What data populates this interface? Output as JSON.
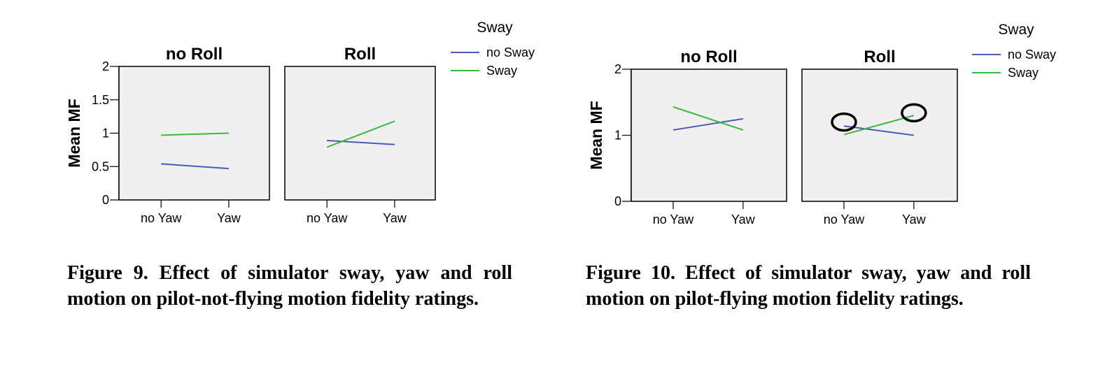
{
  "chart_data": [
    {
      "type": "line",
      "ylabel": "Mean MF",
      "yticks": [
        "0",
        "0.5",
        "1",
        "1.5",
        "2"
      ],
      "ylim": [
        0,
        2
      ],
      "legend": {
        "title": "Sway",
        "placement": "top-right"
      },
      "panels": [
        {
          "title": "no Roll",
          "categories": [
            "no Yaw",
            "Yaw"
          ],
          "series": [
            {
              "name": "no Sway",
              "color": "#4a5cb5",
              "values": [
                0.54,
                0.47
              ]
            },
            {
              "name": "Sway",
              "color": "#3cb83c",
              "values": [
                0.97,
                1.0
              ]
            }
          ]
        },
        {
          "title": "Roll",
          "categories": [
            "no Yaw",
            "Yaw"
          ],
          "series": [
            {
              "name": "no Sway",
              "color": "#4a5cb5",
              "values": [
                0.89,
                0.83
              ]
            },
            {
              "name": "Sway",
              "color": "#3cb83c",
              "values": [
                0.79,
                1.18
              ]
            }
          ]
        }
      ],
      "caption": "Figure 9. Effect of simulator sway, yaw and roll motion on pilot-not-flying motion fidelity ratings."
    },
    {
      "type": "line",
      "ylabel": "Mean MF",
      "yticks": [
        "0",
        "1",
        "2"
      ],
      "ylim": [
        0,
        2
      ],
      "legend": {
        "title": "Sway",
        "placement": "top-right"
      },
      "panels": [
        {
          "title": "no Roll",
          "categories": [
            "no Yaw",
            "Yaw"
          ],
          "series": [
            {
              "name": "no Sway",
              "color": "#4a5cb5",
              "values": [
                1.08,
                1.25
              ]
            },
            {
              "name": "Sway",
              "color": "#3cb83c",
              "values": [
                1.43,
                1.08
              ]
            }
          ]
        },
        {
          "title": "Roll",
          "categories": [
            "no Yaw",
            "Yaw"
          ],
          "series": [
            {
              "name": "no Sway",
              "color": "#4a5cb5",
              "values": [
                1.14,
                1.0
              ]
            },
            {
              "name": "Sway",
              "color": "#3cb83c",
              "values": [
                1.01,
                1.3
              ]
            }
          ],
          "annotations": [
            {
              "shape": "circle",
              "category": "no Yaw",
              "value": 1.2
            },
            {
              "shape": "circle",
              "category": "Yaw",
              "value": 1.34
            }
          ]
        }
      ],
      "caption": "Figure 10. Effect of simulator sway, yaw and roll motion on pilot-flying motion fidelity ratings."
    }
  ]
}
